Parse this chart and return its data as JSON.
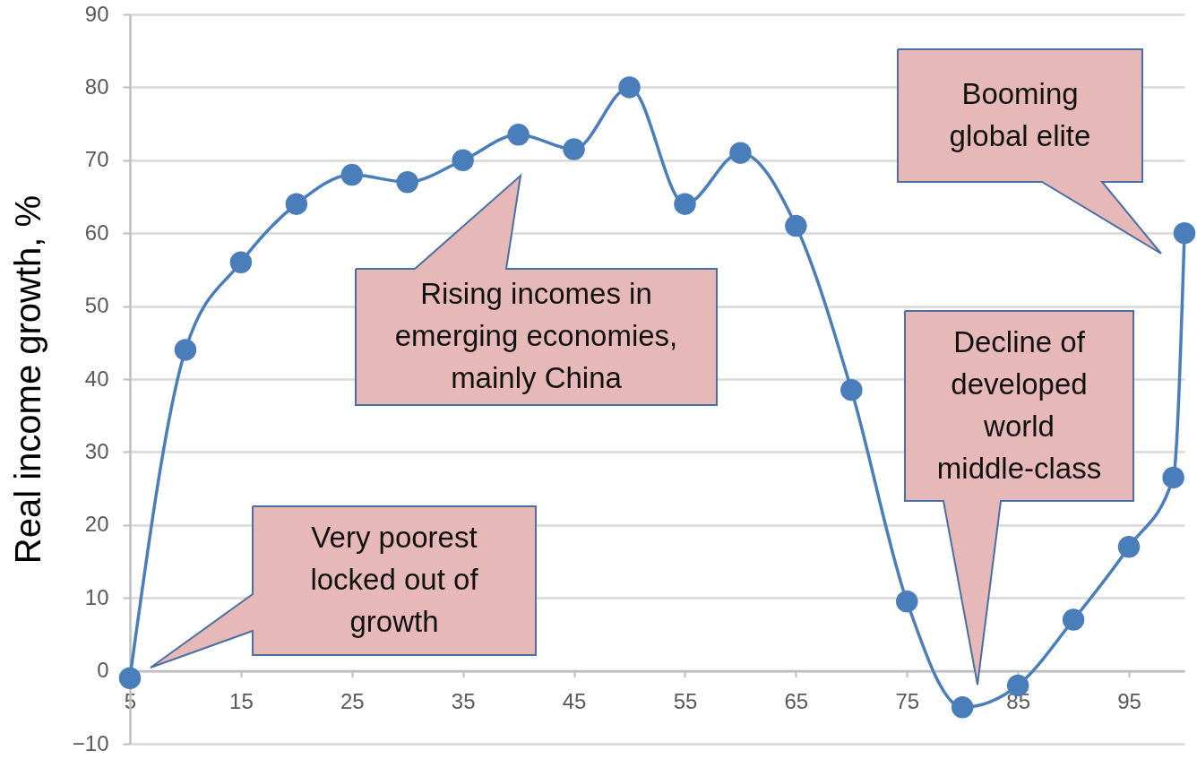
{
  "chart_data": {
    "type": "line",
    "ylabel": "Real income growth, %",
    "x": [
      5,
      10,
      15,
      20,
      25,
      30,
      35,
      40,
      45,
      50,
      55,
      60,
      65,
      70,
      75,
      80,
      85,
      90,
      95,
      99,
      100
    ],
    "series": [
      {
        "color": "#4a7ebb",
        "values": [
          -1,
          44,
          56,
          64,
          68,
          67,
          70,
          73.5,
          71.5,
          80,
          64,
          71,
          61,
          38.5,
          9.5,
          -5,
          -2,
          7,
          17,
          26.5,
          60
        ]
      }
    ],
    "xlim": [
      5,
      100
    ],
    "ylim": [
      -10,
      90
    ],
    "xticks": [
      5,
      15,
      25,
      35,
      45,
      55,
      65,
      75,
      85,
      95
    ],
    "yticks": [
      -10,
      0,
      10,
      20,
      30,
      40,
      50,
      60,
      70,
      80,
      90
    ],
    "grid": "y",
    "marker": "circle",
    "line_style": "solid",
    "annotations": [
      "Very poorest locked out of growth",
      "Rising incomes in emerging economies, mainly China",
      "Decline of developed world middle-class",
      "Booming global elite"
    ]
  }
}
